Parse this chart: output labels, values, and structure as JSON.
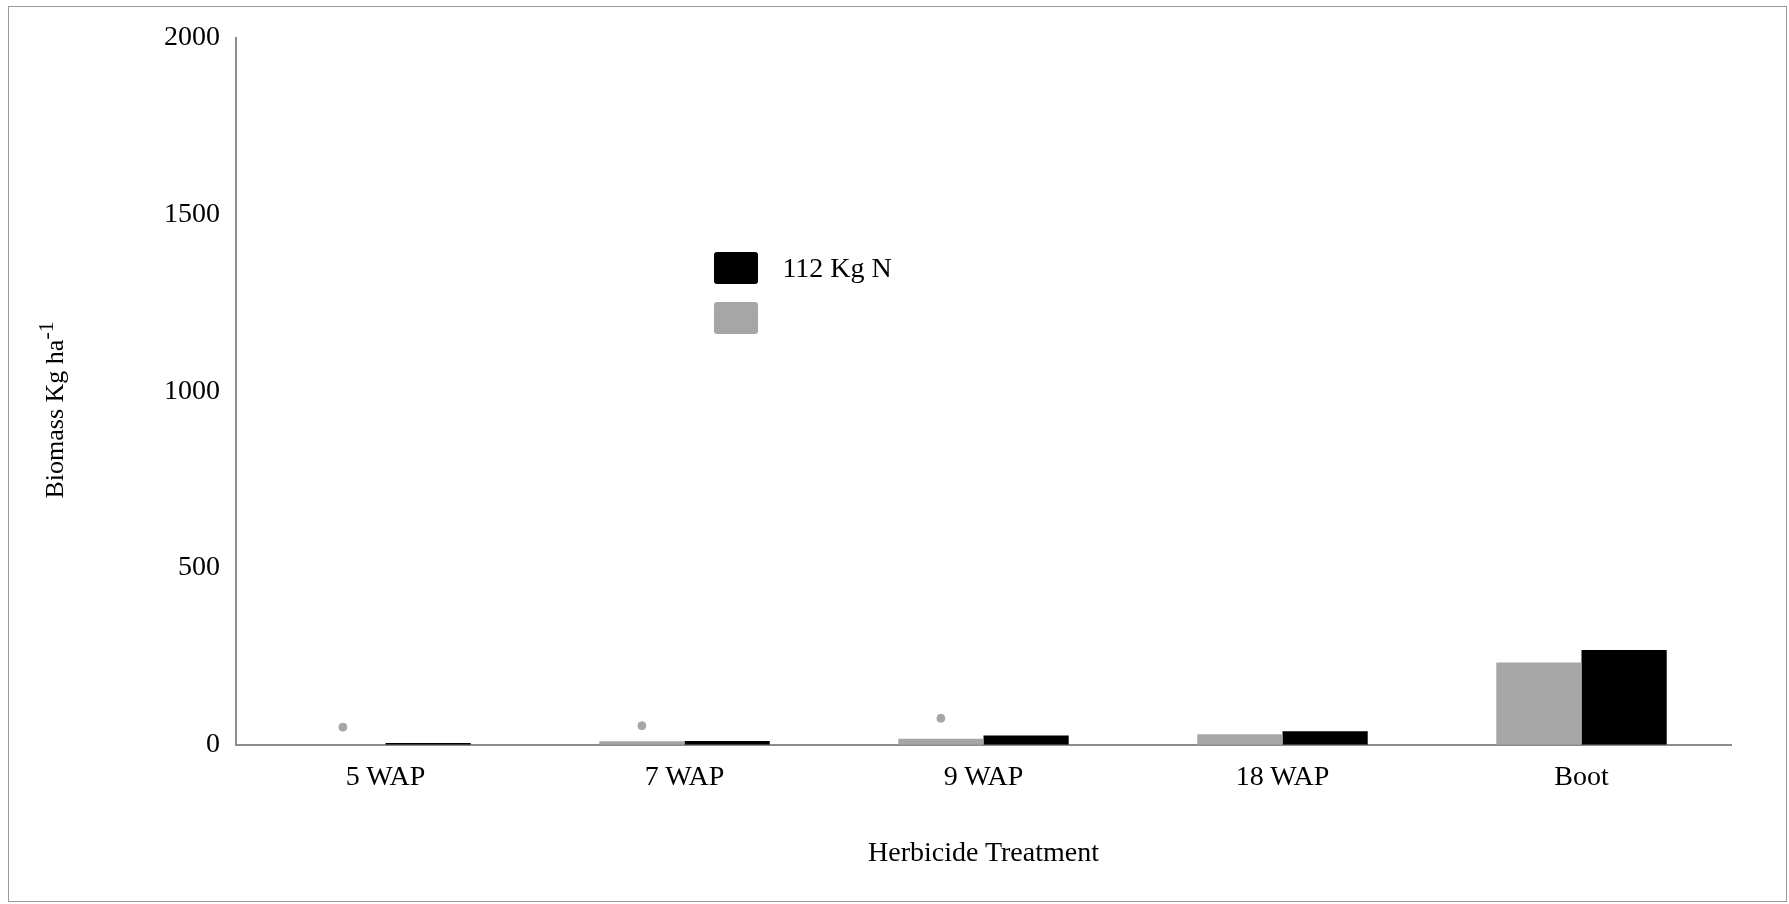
{
  "chart_data": {
    "type": "bar",
    "xlabel": "Herbicide Treatment",
    "ylabel": "Biomass Kg ha$^{-1}$",
    "categories": [
      "5 WAP",
      "7 WAP",
      "9 WAP",
      "18 WAP",
      "Boot"
    ],
    "series": [
      {
        "color": "#a6a6a6",
        "values": [
          null,
          10,
          17,
          30,
          233
        ]
      },
      {
        "name": "112 Kg N",
        "color": "#000000",
        "values": [
          5,
          11,
          26,
          38,
          268
        ]
      },
      {
        "type": "scatter",
        "color": "#a6a6a6",
        "x": [
          "5 WAP",
          "7 WAP",
          "9 WAP"
        ],
        "values": [
          50,
          54,
          75
        ]
      }
    ],
    "legend": "top",
    "ylim": [
      0,
      2000
    ],
    "yticks": [
      0,
      500,
      1000,
      1500,
      2000
    ],
    "grid": false,
    "marker": "circle"
  }
}
